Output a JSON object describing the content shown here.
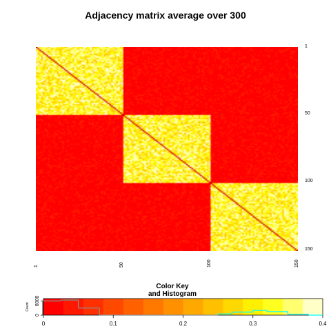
{
  "title": "Adjacency matrix average over 300",
  "chart_data": {
    "type": "heatmap",
    "n": 150,
    "blocks": [
      {
        "rows": [
          1,
          50
        ],
        "cols": [
          1,
          50
        ],
        "level": "high"
      },
      {
        "rows": [
          51,
          100
        ],
        "cols": [
          51,
          100
        ],
        "level": "high"
      },
      {
        "rows": [
          101,
          150
        ],
        "cols": [
          101,
          150
        ],
        "level": "high"
      },
      {
        "rows": "off-diagonal blocks",
        "level": "low"
      }
    ],
    "diagonal_value": 0,
    "within_block_value_range": [
      0.25,
      0.4
    ],
    "between_block_value_range": [
      0,
      0.08
    ],
    "row_ticks": [
      "1",
      "50",
      "100",
      "150"
    ],
    "col_ticks": [
      "1",
      "50",
      "100",
      "150"
    ],
    "colors": {
      "palette": [
        "#ff0000",
        "#ff1800",
        "#ff3000",
        "#ff4800",
        "#ff6000",
        "#ff7800",
        "#ff9000",
        "#ffa800",
        "#ffc000",
        "#ffd800",
        "#fff000",
        "#ffff20",
        "#ffff70",
        "#ffffc8"
      ],
      "diagonal": "#d00000",
      "histogram_line": "#00ffff"
    },
    "color_key": {
      "title_line1": "Color Key",
      "title_line2": "and Histogram",
      "x_ticks": [
        "0",
        "0.1",
        "0.2",
        "0.3",
        "0.4"
      ],
      "x_range": [
        0,
        0.4
      ],
      "y_label": "Count",
      "y_ticks": [
        "0",
        "6000"
      ],
      "y_range": [
        0,
        7000
      ],
      "histogram": [
        {
          "x": [
            0,
            0.025
          ],
          "count": 6000
        },
        {
          "x": [
            0.025,
            0.05
          ],
          "count": 6400
        },
        {
          "x": [
            0.05,
            0.08
          ],
          "count": 3000
        },
        {
          "x": [
            0.08,
            0.25
          ],
          "count": 0
        },
        {
          "x": [
            0.25,
            0.27
          ],
          "count": 500
        },
        {
          "x": [
            0.27,
            0.3
          ],
          "count": 1300
        },
        {
          "x": [
            0.3,
            0.32
          ],
          "count": 2000
        },
        {
          "x": [
            0.32,
            0.35
          ],
          "count": 1500
        },
        {
          "x": [
            0.35,
            0.38
          ],
          "count": 400
        },
        {
          "x": [
            0.38,
            0.4
          ],
          "count": 0
        }
      ]
    }
  }
}
